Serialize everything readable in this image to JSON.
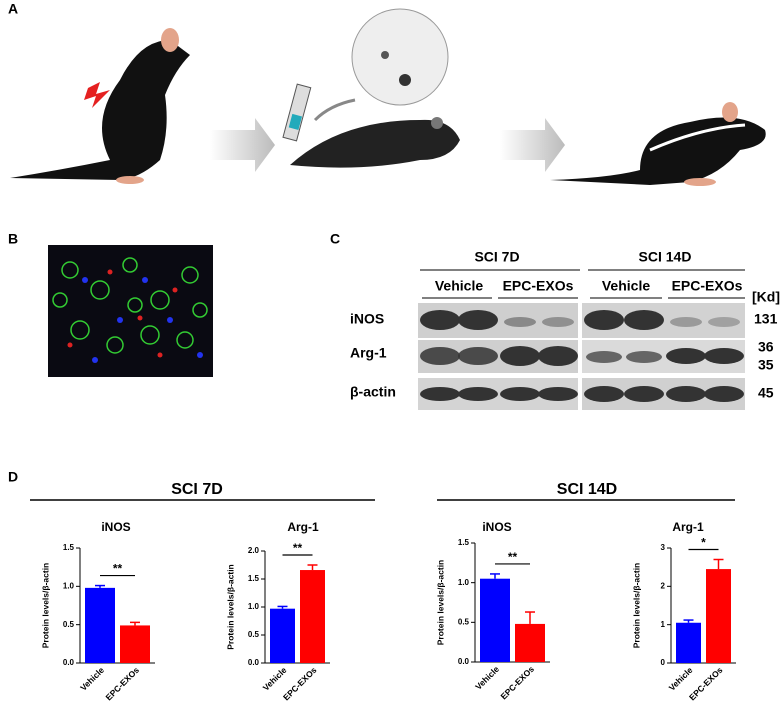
{
  "panels": {
    "a": "A",
    "b": "B",
    "c": "C",
    "d": "D"
  },
  "blot": {
    "groups": [
      "SCI 7D",
      "SCI 14D"
    ],
    "treatments": [
      "Vehicle",
      "EPC-EXOs",
      "Vehicle",
      "EPC-EXOs"
    ],
    "unit": "[Kd]",
    "rows": [
      "iNOS",
      "Arg-1",
      "β-actin"
    ],
    "sizes": [
      "131",
      "36",
      "35",
      "45"
    ]
  },
  "groups": [
    "SCI 7D",
    "SCI 14D"
  ],
  "chart_data": [
    {
      "type": "bar",
      "title": "iNOS",
      "ylabel": "Protein levels/β-actin",
      "categories": [
        "Vehicle",
        "EPC-EXOs"
      ],
      "colors": [
        "#0000ff",
        "#ff0000"
      ],
      "values": [
        0.98,
        0.49
      ],
      "errors": [
        0.03,
        0.04
      ],
      "ylim": [
        0,
        1.5
      ],
      "yticks": [
        {
          "value": 0,
          "label": "0.0"
        },
        0.5,
        {
          "value": 1,
          "label": "1.0"
        },
        1.5
      ],
      "annotation": "**"
    },
    {
      "type": "bar",
      "title": "Arg-1",
      "ylabel": "Protein levels/β-actin",
      "categories": [
        "Vehicle",
        "EPC-EXOs"
      ],
      "colors": [
        "#0000ff",
        "#ff0000"
      ],
      "values": [
        0.97,
        1.66
      ],
      "errors": [
        0.04,
        0.09
      ],
      "ylim": [
        0,
        2
      ],
      "yticks": [
        {
          "value": 0,
          "label": "0.0"
        },
        0.5,
        {
          "value": 1,
          "label": "1.0"
        },
        1.5,
        {
          "value": 2,
          "label": "2.0"
        }
      ],
      "annotation": "**"
    },
    {
      "type": "bar",
      "title": "iNOS",
      "ylabel": "Protein levels/β-actin",
      "categories": [
        "Vehicle",
        "EPC-EXOs"
      ],
      "colors": [
        "#0000ff",
        "#ff0000"
      ],
      "values": [
        1.05,
        0.48
      ],
      "errors": [
        0.06,
        0.15
      ],
      "ylim": [
        0,
        1.5
      ],
      "yticks": [
        {
          "value": 0,
          "label": "0.0"
        },
        0.5,
        {
          "value": 1,
          "label": "1.0"
        },
        1.5
      ],
      "annotation": "**"
    },
    {
      "type": "bar",
      "title": "Arg-1",
      "ylabel": "Protein levels/β-actin",
      "categories": [
        "Vehicle",
        "EPC-EXOs"
      ],
      "colors": [
        "#0000ff",
        "#ff0000"
      ],
      "values": [
        1.05,
        2.45
      ],
      "errors": [
        0.07,
        0.25
      ],
      "ylim": [
        0,
        3
      ],
      "yticks": [
        0,
        1,
        2,
        3
      ],
      "annotation": "*"
    }
  ]
}
